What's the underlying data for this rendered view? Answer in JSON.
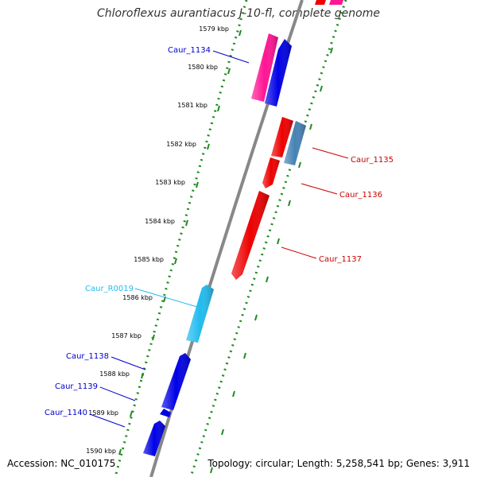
{
  "title": "Chloroflexus aurantiacus J-10-fl, complete genome",
  "footer": {
    "accession": "Accession: NC_010175",
    "summary": "Topology: circular; Length: 5,258,541 bp; Genes: 3,911"
  },
  "ruler": {
    "unit": "kbp",
    "ticks": [
      "1579 kbp",
      "1580 kbp",
      "1581 kbp",
      "1582 kbp",
      "1583 kbp",
      "1584 kbp",
      "1585 kbp",
      "1586 kbp",
      "1587 kbp",
      "1588 kbp",
      "1589 kbp",
      "1590 kbp"
    ]
  },
  "colors": {
    "forward_cds": "#0000e6",
    "reverse_cds": "#ee0000",
    "forward_pseudo": "#ff1493",
    "forward_rna": "#22bbee",
    "reverse_other": "#4682b4",
    "backbone": "#888888",
    "minor_tick": "#1f8a1f"
  },
  "features": [
    {
      "id": "Caur_1134",
      "strand": "forward",
      "color": "#0000e6",
      "labeled": true,
      "start_kbp": 1579.5,
      "end_kbp": 1581.1
    },
    {
      "id": "",
      "strand": "forward",
      "color": "#ff1493",
      "labeled": false,
      "start_kbp": 1579.6,
      "end_kbp": 1581.1
    },
    {
      "id": "Caur_1135",
      "strand": "reverse",
      "color": "#4682b4",
      "labeled": true,
      "start_kbp": 1581.4,
      "end_kbp": 1582.6
    },
    {
      "id": "",
      "strand": "reverse",
      "color": "#ee0000",
      "labeled": false,
      "start_kbp": 1581.4,
      "end_kbp": 1582.2
    },
    {
      "id": "Caur_1136",
      "strand": "reverse",
      "color": "#ee0000",
      "labeled": true,
      "start_kbp": 1582.4,
      "end_kbp": 1583.0
    },
    {
      "id": "Caur_1137",
      "strand": "reverse",
      "color": "#ee0000",
      "labeled": true,
      "start_kbp": 1583.3,
      "end_kbp": 1585.5
    },
    {
      "id": "Caur_R0019",
      "strand": "forward",
      "color": "#22bbee",
      "labeled": true,
      "start_kbp": 1585.8,
      "end_kbp": 1587.0
    },
    {
      "id": "Caur_1138",
      "strand": "forward",
      "color": "#0000e6",
      "labeled": true,
      "start_kbp": 1587.5,
      "end_kbp": 1588.8
    },
    {
      "id": "Caur_1139",
      "strand": "forward",
      "color": "#0000e6",
      "labeled": true,
      "start_kbp": 1588.9,
      "end_kbp": 1589.0
    },
    {
      "id": "Caur_1140",
      "strand": "forward",
      "color": "#0000e6",
      "labeled": true,
      "start_kbp": 1589.2,
      "end_kbp": 1590.1
    }
  ]
}
